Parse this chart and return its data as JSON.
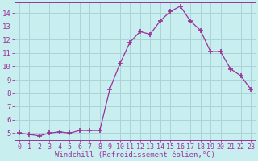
{
  "x": [
    0,
    1,
    2,
    3,
    4,
    5,
    6,
    7,
    8,
    9,
    10,
    11,
    12,
    13,
    14,
    15,
    16,
    17,
    18,
    19,
    20,
    21,
    22,
    23
  ],
  "y": [
    5.0,
    4.9,
    4.8,
    5.0,
    5.1,
    5.0,
    5.2,
    5.2,
    5.2,
    8.3,
    10.2,
    11.8,
    12.6,
    12.4,
    13.4,
    14.1,
    14.5,
    13.4,
    12.7,
    11.1,
    11.1,
    9.8,
    9.3,
    8.3
  ],
  "line_color": "#993399",
  "marker": "+",
  "marker_size": 5,
  "marker_lw": 1.2,
  "bg_color": "#c8eef0",
  "grid_color": "#aad4d8",
  "xlabel": "Windchill (Refroidissement éolien,°C)",
  "xlabel_color": "#993399",
  "tick_color": "#993399",
  "xlim": [
    -0.5,
    23.5
  ],
  "ylim": [
    4.5,
    14.8
  ],
  "yticks": [
    5,
    6,
    7,
    8,
    9,
    10,
    11,
    12,
    13,
    14
  ],
  "xticks": [
    0,
    1,
    2,
    3,
    4,
    5,
    6,
    7,
    8,
    9,
    10,
    11,
    12,
    13,
    14,
    15,
    16,
    17,
    18,
    19,
    20,
    21,
    22,
    23
  ],
  "spine_color": "#993399",
  "tick_fontsize": 6,
  "xlabel_fontsize": 6.5
}
